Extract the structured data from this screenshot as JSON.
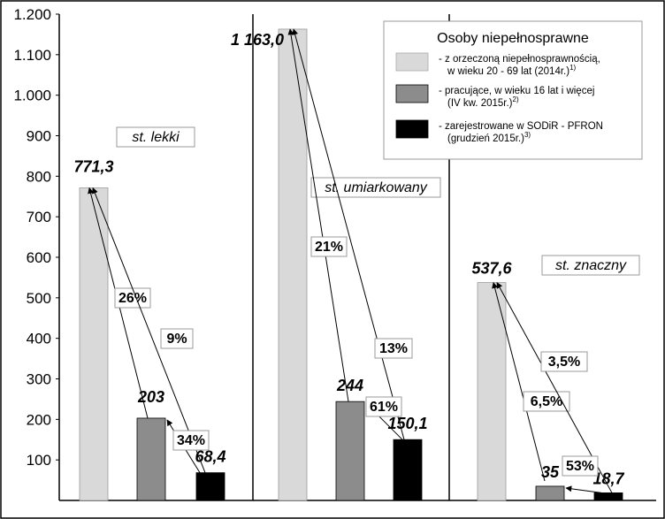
{
  "chart_data": {
    "type": "bar",
    "ylim": [
      0,
      1200
    ],
    "y_ticks": [
      "100",
      "200",
      "300",
      "400",
      "500",
      "600",
      "700",
      "800",
      "900",
      "1.000",
      "1.100",
      "1.200"
    ],
    "y_tick_values": [
      100,
      200,
      300,
      400,
      500,
      600,
      700,
      800,
      900,
      1000,
      1100,
      1200
    ],
    "grid": false,
    "legend_position": "top-right",
    "legend": {
      "title": "Osoby niepełnosprawne",
      "items": [
        {
          "line1": "- z orzeczoną niepełnosprawnością,",
          "line2": "w wieku 20 - 69 lat (2014r.)",
          "sup": "1)",
          "color": "#d9d9d9"
        },
        {
          "line1": "- pracujące, w wieku 16 lat i więcej",
          "line2": "(IV kw. 2015r.)",
          "sup": "2)",
          "color": "#8c8c8c"
        },
        {
          "line1": "- zarejestrowane w SODiR - PFRON",
          "line2": "(grudzień 2015r.)",
          "sup": "3)",
          "color": "#000000"
        }
      ]
    },
    "categories": [
      "st. lekki",
      "st. umiarkowany",
      "st. znaczny"
    ],
    "series": [
      {
        "name": "z orzeczoną niepełnosprawnością, w wieku 20 - 69 lat (2014r.)",
        "color": "#d9d9d9",
        "values": [
          771.3,
          1163.0,
          537.6
        ],
        "labels": [
          "771,3",
          "1 163,0",
          "537,6"
        ]
      },
      {
        "name": "pracujące, w wieku 16 lat i więcej (IV kw. 2015r.)",
        "color": "#8c8c8c",
        "values": [
          203,
          244,
          35
        ],
        "labels": [
          "203",
          "244",
          "35"
        ]
      },
      {
        "name": "zarejestrowane w SODiR - PFRON (grudzień 2015r.)",
        "color": "#000000",
        "values": [
          68.4,
          150.1,
          18.7
        ],
        "labels": [
          "68,4",
          "150,1",
          "18,7"
        ]
      }
    ],
    "percentages": [
      {
        "group": 0,
        "from": 1,
        "to": 0,
        "label": "26%"
      },
      {
        "group": 0,
        "from": 2,
        "to": 0,
        "label": "9%"
      },
      {
        "group": 0,
        "from": 2,
        "to": 1,
        "label": "34%"
      },
      {
        "group": 1,
        "from": 1,
        "to": 0,
        "label": "21%"
      },
      {
        "group": 1,
        "from": 2,
        "to": 0,
        "label": "13%"
      },
      {
        "group": 1,
        "from": 2,
        "to": 1,
        "label": "61%"
      },
      {
        "group": 2,
        "from": 1,
        "to": 0,
        "label": "6,5%"
      },
      {
        "group": 2,
        "from": 2,
        "to": 0,
        "label": "3,5%"
      },
      {
        "group": 2,
        "from": 2,
        "to": 1,
        "label": "53%"
      }
    ]
  }
}
